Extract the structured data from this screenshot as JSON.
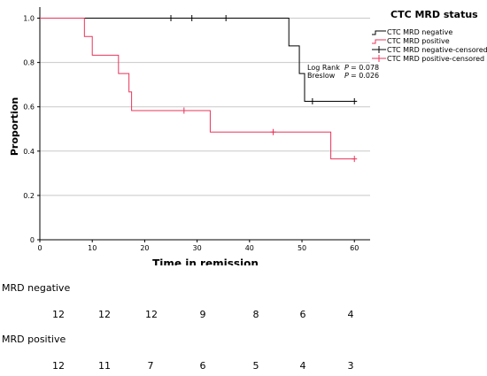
{
  "chart_data": {
    "type": "line",
    "xlabel": "Time in remission",
    "ylabel": "Proportion",
    "xlim": [
      0,
      63
    ],
    "ylim": [
      0,
      1.05
    ],
    "x_ticks": [
      "0",
      "10",
      "20",
      "30",
      "40",
      "50",
      "60"
    ],
    "y_ticks": [
      "0",
      "0.2",
      "0.4",
      "0.6",
      "0.8",
      "1.0"
    ],
    "grid": "horizontal",
    "legend_title": "CTC MRD status",
    "legend_position": "top-right outside",
    "series": [
      {
        "name": "CTC MRD negative",
        "color": "#000000",
        "steps": [
          [
            0,
            1.0
          ],
          [
            47.5,
            1.0
          ],
          [
            47.5,
            0.875
          ],
          [
            49.5,
            0.875
          ],
          [
            49.5,
            0.75
          ],
          [
            50.5,
            0.75
          ],
          [
            50.5,
            0.625
          ],
          [
            60,
            0.625
          ]
        ],
        "censored": [
          [
            25,
            1.0
          ],
          [
            29,
            1.0
          ],
          [
            35.5,
            1.0
          ],
          [
            52,
            0.625
          ],
          [
            60,
            0.625
          ]
        ]
      },
      {
        "name": "CTC MRD positive",
        "color": "#e8355a",
        "steps": [
          [
            0,
            1.0
          ],
          [
            8.5,
            1.0
          ],
          [
            8.5,
            0.917
          ],
          [
            10,
            0.917
          ],
          [
            10,
            0.833
          ],
          [
            15,
            0.833
          ],
          [
            15,
            0.75
          ],
          [
            17,
            0.75
          ],
          [
            17,
            0.667
          ],
          [
            17.5,
            0.667
          ],
          [
            17.5,
            0.583
          ],
          [
            32.5,
            0.583
          ],
          [
            32.5,
            0.486
          ],
          [
            55.5,
            0.486
          ],
          [
            55.5,
            0.365
          ],
          [
            60,
            0.365
          ]
        ],
        "censored": [
          [
            27.5,
            0.583
          ],
          [
            44.5,
            0.486
          ],
          [
            60,
            0.365
          ]
        ]
      }
    ],
    "legend_entries": [
      {
        "label": "CTC MRD negative",
        "color": "#000000",
        "marker": "line"
      },
      {
        "label": "CTC MRD positive",
        "color": "#e8355a",
        "marker": "line"
      },
      {
        "label": "CTC MRD negative-censored",
        "color": "#000000",
        "marker": "plus"
      },
      {
        "label": "CTC MRD positive-censored",
        "color": "#e8355a",
        "marker": "plus"
      }
    ],
    "annotations": [
      {
        "label": "Log Rank",
        "p_label": "P",
        "p_value": "= 0.078"
      },
      {
        "label": "Breslow",
        "p_label": "P",
        "p_value": "= 0.026"
      }
    ]
  },
  "risk_table": {
    "rows": [
      {
        "title": "MRD negative",
        "values": [
          "12",
          "12",
          "12",
          "9",
          "8",
          "6",
          "4"
        ]
      },
      {
        "title": "MRD positive",
        "values": [
          "12",
          "11",
          "7",
          "6",
          "5",
          "4",
          "3"
        ]
      }
    ]
  }
}
